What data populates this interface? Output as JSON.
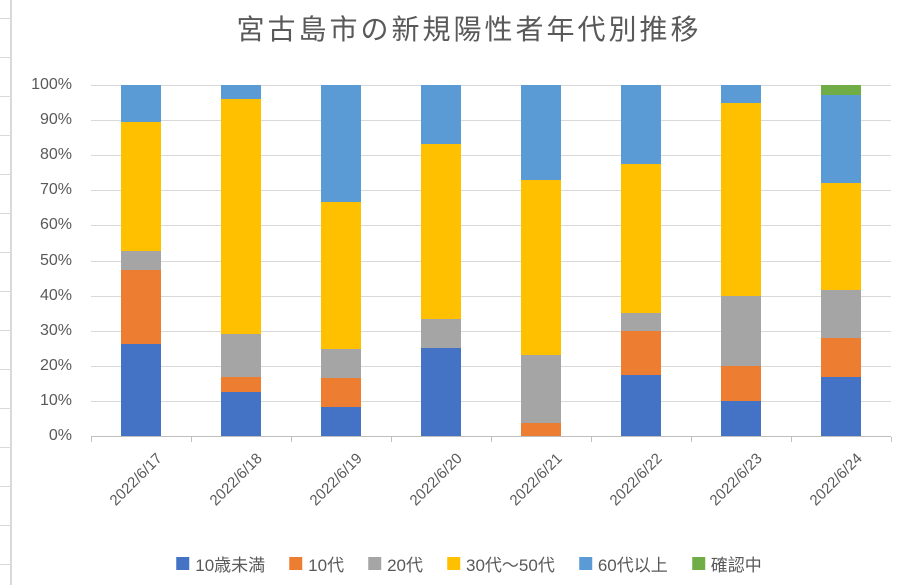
{
  "title": "宮古島市の新規陽性者年代別推移",
  "y_axis": {
    "tick_labels": [
      "0%",
      "10%",
      "20%",
      "30%",
      "40%",
      "50%",
      "60%",
      "70%",
      "80%",
      "90%",
      "100%"
    ]
  },
  "chart_data": {
    "type": "bar",
    "subtype": "100%-stacked-column",
    "title": "宮古島市の新規陽性者年代別推移",
    "categories": [
      "2022/6/17",
      "2022/6/18",
      "2022/6/19",
      "2022/6/20",
      "2022/6/21",
      "2022/6/22",
      "2022/6/23",
      "2022/6/24"
    ],
    "unit": "percent",
    "series": [
      {
        "name": "10歳未満",
        "color": "#4472C4",
        "values": [
          26.3,
          12.5,
          8.3,
          25.0,
          0.0,
          17.5,
          10.0,
          16.7
        ]
      },
      {
        "name": "10代",
        "color": "#ED7D31",
        "values": [
          21.1,
          4.2,
          8.3,
          0.0,
          3.8,
          12.5,
          10.0,
          11.1
        ]
      },
      {
        "name": "20代",
        "color": "#A5A5A5",
        "values": [
          5.3,
          12.5,
          8.3,
          8.3,
          19.2,
          5.0,
          20.0,
          13.9
        ]
      },
      {
        "name": "30代～50代",
        "color": "#FFC000",
        "values": [
          36.8,
          66.7,
          41.8,
          50.0,
          50.0,
          42.5,
          55.0,
          30.5
        ]
      },
      {
        "name": "60代以上",
        "color": "#5B9BD5",
        "values": [
          10.5,
          4.1,
          33.3,
          16.7,
          27.0,
          22.5,
          5.0,
          25.0
        ]
      },
      {
        "name": "確認中",
        "color": "#70AD47",
        "values": [
          0.0,
          0.0,
          0.0,
          0.0,
          0.0,
          0.0,
          0.0,
          2.8
        ]
      }
    ],
    "ylim": [
      0,
      100
    ],
    "grid": true,
    "legend_position": "bottom",
    "x_tick_rotation_deg": 45,
    "gridline_color": "#D9D9D9",
    "axis_line_color": "#BFBFBF",
    "text_color": "#595959"
  }
}
